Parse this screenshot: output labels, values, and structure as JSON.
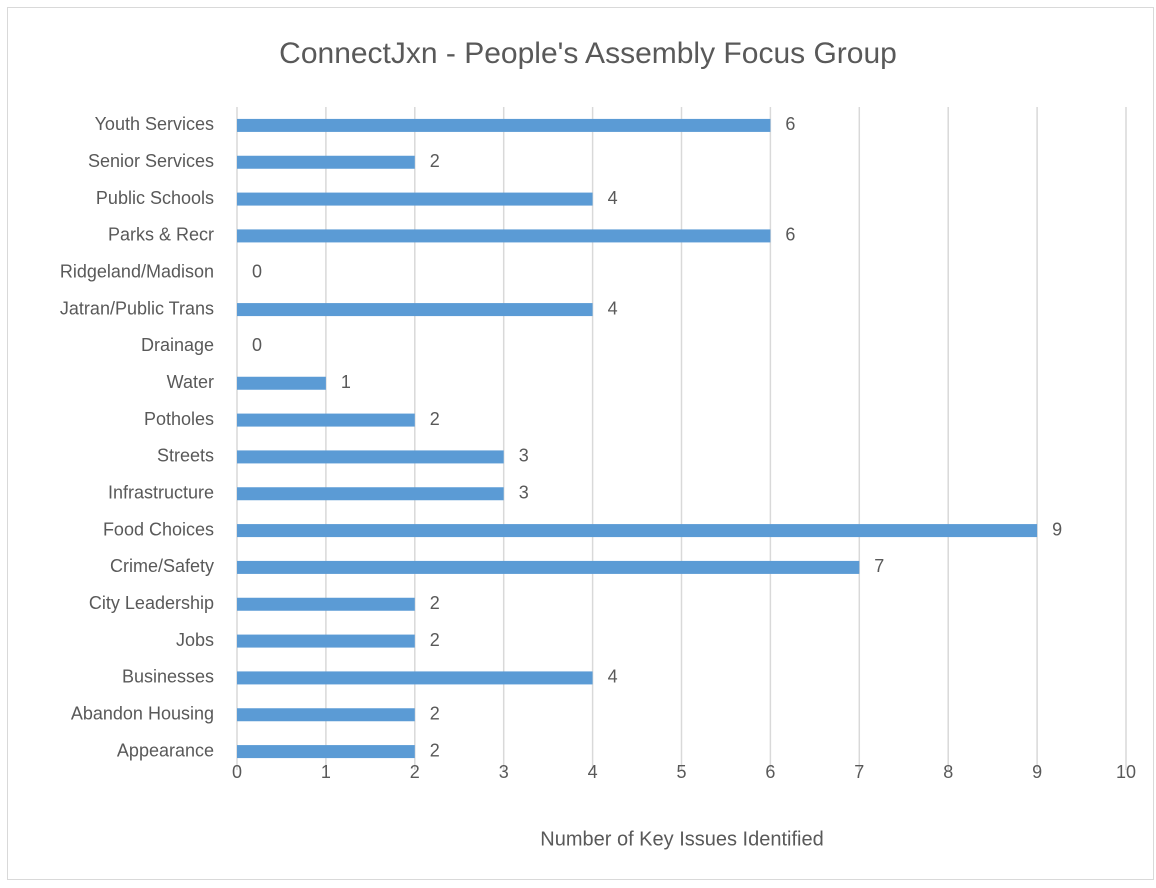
{
  "chart_data": {
    "type": "barh",
    "title": "ConnectJxn - People's Assembly Focus Group",
    "xlabel": "Number of Key Issues Identified",
    "categories": [
      "Youth Services",
      "Senior Services",
      "Public Schools",
      "Parks & Recr",
      "Ridgeland/Madison",
      "Jatran/Public Trans",
      "Drainage",
      "Water",
      "Potholes",
      "Streets",
      "Infrastructure",
      "Food Choices",
      "Crime/Safety",
      "City Leadership",
      "Jobs",
      "Businesses",
      "Abandon Housing",
      "Appearance"
    ],
    "values": [
      6,
      2,
      4,
      6,
      0,
      4,
      0,
      1,
      2,
      3,
      3,
      9,
      7,
      2,
      2,
      4,
      2,
      2
    ],
    "color": "#5b9bd5",
    "xlim": [
      0,
      10
    ],
    "xticks": [
      0,
      1,
      2,
      3,
      4,
      5,
      6,
      7,
      8,
      9,
      10
    ],
    "grid": true
  }
}
